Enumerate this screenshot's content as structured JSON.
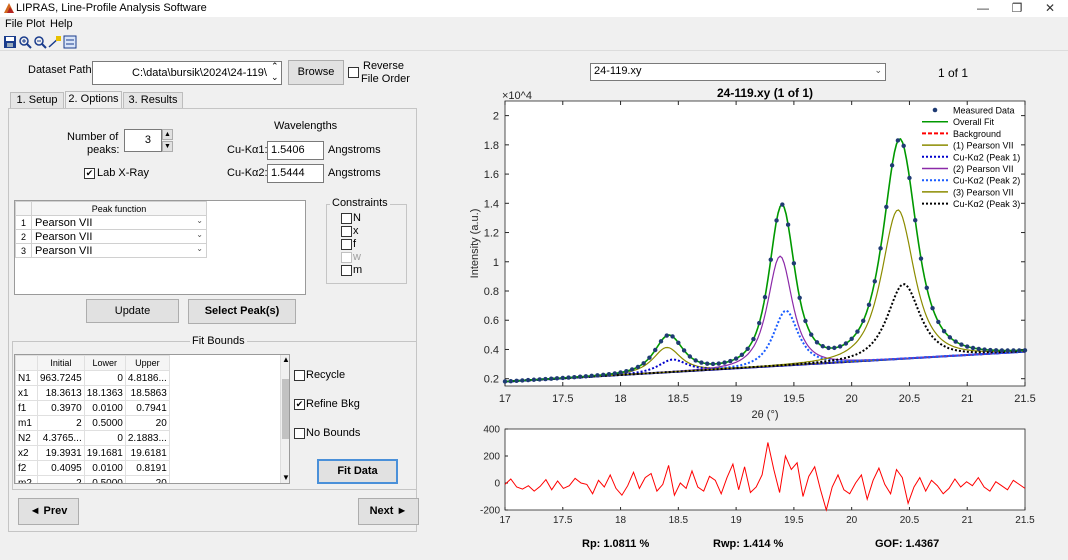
{
  "window": {
    "title": "LIPRAS, Line-Profile Analysis Software",
    "controls": [
      "—",
      "❐",
      "✕"
    ]
  },
  "menu": [
    "File",
    "Plot",
    "Help"
  ],
  "toolbar_icons": [
    "save-icon",
    "zoom-in-icon",
    "zoom-out-icon",
    "data-cursor-icon",
    "legend-icon"
  ],
  "dataset": {
    "label": "Dataset Path",
    "path": "C:\\data\\bursik\\2024\\24-119\\",
    "browse": "Browse",
    "reverse_label_1": "Reverse",
    "reverse_label_2": "File Order"
  },
  "tabs": [
    "1. Setup",
    "2. Options",
    "3. Results"
  ],
  "options": {
    "num_peaks_label_1": "Number of",
    "num_peaks_label_2": "peaks:",
    "num_peaks": "3",
    "lab_xray": "Lab X-Ray",
    "wavelengths_title": "Wavelengths",
    "ka1_label": "Cu-Kα1:",
    "ka1_value": "1.5406",
    "ka2_label": "Cu-Kα2:",
    "ka2_value": "1.5444",
    "unit": "Angstroms",
    "peak_function_header": "Peak function",
    "peaks": [
      {
        "index": "1",
        "func": "Pearson VII"
      },
      {
        "index": "2",
        "func": "Pearson VII"
      },
      {
        "index": "3",
        "func": "Pearson VII"
      }
    ],
    "constraints_title": "Constraints",
    "constraints": [
      "N",
      "x",
      "f",
      "w",
      "m"
    ],
    "update": "Update",
    "select_peaks": "Select Peak(s)"
  },
  "fit_bounds": {
    "title": "Fit Bounds",
    "headers": [
      "",
      "Initial",
      "Lower",
      "Upper"
    ],
    "rows": [
      [
        "N1",
        "963.7245",
        "0",
        "4.8186..."
      ],
      [
        "x1",
        "18.3613",
        "18.1363",
        "18.5863"
      ],
      [
        "f1",
        "0.3970",
        "0.0100",
        "0.7941"
      ],
      [
        "m1",
        "2",
        "0.5000",
        "20"
      ],
      [
        "N2",
        "4.3765...",
        "0",
        "2.1883..."
      ],
      [
        "x2",
        "19.3931",
        "19.1681",
        "19.6181"
      ],
      [
        "f2",
        "0.4095",
        "0.0100",
        "0.8191"
      ],
      [
        "m2",
        "2",
        "0.5000",
        "20"
      ]
    ],
    "recycle": "Recycle",
    "refine_bkg": "Refine Bkg",
    "no_bounds": "No Bounds",
    "fit_data": "Fit Data"
  },
  "nav": {
    "prev": "◄ Prev",
    "next": "Next ►"
  },
  "file_select": {
    "value": "24-119.xy",
    "counter": "1 of 1"
  },
  "chart_data": [
    {
      "type": "line",
      "title": "24-119.xy (1 of 1)",
      "xlabel": "2θ (°)",
      "ylabel": "Intensity (a.u.)",
      "y_multiplier": "×10^4",
      "xlim": [
        17,
        21.5
      ],
      "ylim": [
        0.15,
        2.1
      ],
      "xticks": [
        17,
        17.5,
        18,
        18.5,
        19,
        19.5,
        20,
        20.5,
        21,
        21.5
      ],
      "yticks": [
        0.2,
        0.4,
        0.6,
        0.8,
        1,
        1.2,
        1.4,
        1.6,
        1.8,
        2
      ],
      "xtick_labels": [
        "17",
        "17.5",
        "18",
        "18.5",
        "19",
        "19.5",
        "20",
        "20.5",
        "21",
        "21.5"
      ],
      "ytick_labels": [
        "0.2",
        "0.4",
        "0.6",
        "0.8",
        "1",
        "1.2",
        "1.4",
        "1.6",
        "1.8",
        "2"
      ],
      "legend_position": "top-right",
      "background": {
        "start": [
          17,
          0.18
        ],
        "end": [
          21.5,
          0.385
        ]
      },
      "peaks": [
        {
          "name": "(1) Pearson VII",
          "center": 18.4,
          "height": 0.17,
          "width": 0.28,
          "color": "#8c8c00"
        },
        {
          "name": "(2) Pearson VII",
          "center": 19.38,
          "height": 0.75,
          "width": 0.25,
          "color": "#8b2aa8"
        },
        {
          "name": "(3) Pearson VII",
          "center": 20.4,
          "height": 1.02,
          "width": 0.33,
          "color": "#8c8c00"
        }
      ],
      "ka2_ratio": 0.5,
      "ka2_shift": 0.05,
      "legend": [
        {
          "label": "Measured Data",
          "style": "dot",
          "color": "#1f3b73"
        },
        {
          "label": "Overall Fit",
          "style": "solid",
          "color": "#009900"
        },
        {
          "label": "Background",
          "style": "dashed",
          "color": "#ff0000"
        },
        {
          "label": "(1) Pearson VII",
          "style": "solid",
          "color": "#8c8c00"
        },
        {
          "label": "Cu-Kα2 (Peak 1)",
          "style": "dotted",
          "color": "#0000cc"
        },
        {
          "label": "(2) Pearson VII",
          "style": "solid",
          "color": "#8b2aa8"
        },
        {
          "label": "Cu-Kα2 (Peak 2)",
          "style": "dotted",
          "color": "#1a5cff"
        },
        {
          "label": "(3) Pearson VII",
          "style": "solid",
          "color": "#8c8c00"
        },
        {
          "label": "Cu-Kα2 (Peak 3)",
          "style": "dotted",
          "color": "#000000"
        }
      ]
    },
    {
      "type": "line",
      "title": "",
      "xlim": [
        17,
        21.5
      ],
      "ylim": [
        -200,
        400
      ],
      "xticks": [
        17,
        17.5,
        18,
        18.5,
        19,
        19.5,
        20,
        20.5,
        21,
        21.5
      ],
      "yticks": [
        -200,
        0,
        200,
        400
      ],
      "xtick_labels": [
        "17",
        "17.5",
        "18",
        "18.5",
        "19",
        "19.5",
        "20",
        "20.5",
        "21",
        "21.5"
      ],
      "ytick_labels": [
        "-200",
        "0",
        "200",
        "400"
      ],
      "color": "#ff0000",
      "residuals": [
        -10,
        30,
        -30,
        -45,
        -20,
        -60,
        -25,
        25,
        -50,
        15,
        -40,
        -20,
        35,
        0,
        -10,
        -80,
        20,
        -30,
        60,
        -40,
        -90,
        -20,
        80,
        -40,
        40,
        70,
        -60,
        -10,
        130,
        -90,
        0,
        -40,
        90,
        -30,
        -60,
        50,
        20,
        -80,
        40,
        140,
        -50,
        120,
        -70,
        -30,
        60,
        300,
        100,
        -70,
        200,
        100,
        150,
        -100,
        50,
        120,
        -50,
        -200,
        -30,
        60,
        -50,
        -80,
        0,
        60,
        -120,
        20,
        110,
        -10,
        -80,
        100,
        40,
        -150,
        -30,
        40,
        -60,
        20,
        -20,
        -80,
        -40,
        30,
        -30,
        10,
        -20,
        40,
        -30,
        -60,
        10,
        -20,
        -50,
        20,
        -10,
        -40
      ]
    }
  ],
  "stats": {
    "rp": "Rp: 1.0811 %",
    "rwp": "Rwp: 1.414 %",
    "gof": "GOF: 1.4367"
  }
}
